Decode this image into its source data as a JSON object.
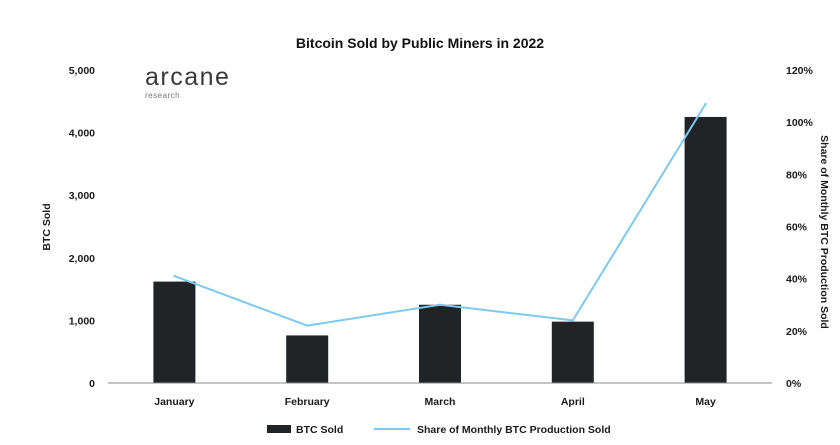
{
  "chart_data": {
    "type": "bar",
    "title": "Bitcoin Sold by Public Miners in 2022",
    "categories": [
      "January",
      "February",
      "March",
      "April",
      "May"
    ],
    "series": [
      {
        "name": "BTC Sold",
        "type": "bar",
        "axis": "left",
        "color": "#202426",
        "values": [
          1620,
          760,
          1250,
          980,
          4250
        ]
      },
      {
        "name": "Share of Monthly BTC Production Sold",
        "type": "line",
        "axis": "right",
        "color": "#7ccaf0",
        "values": [
          41,
          22,
          30,
          24,
          107
        ]
      }
    ],
    "ylabel": "BTC Sold",
    "ylabel_right": "Share of Monthly BTC Production Sold",
    "ylim": [
      0,
      5000
    ],
    "ylim_right": [
      0,
      120
    ],
    "yticks": [
      "0",
      "1,000",
      "2,000",
      "3,000",
      "4,000",
      "5,000"
    ],
    "yticks_right": [
      "0%",
      "20%",
      "40%",
      "60%",
      "80%",
      "100%",
      "120%"
    ],
    "grid": false,
    "legend": "bottom-center",
    "brand": {
      "name": "arcane",
      "subtitle": "research"
    }
  }
}
